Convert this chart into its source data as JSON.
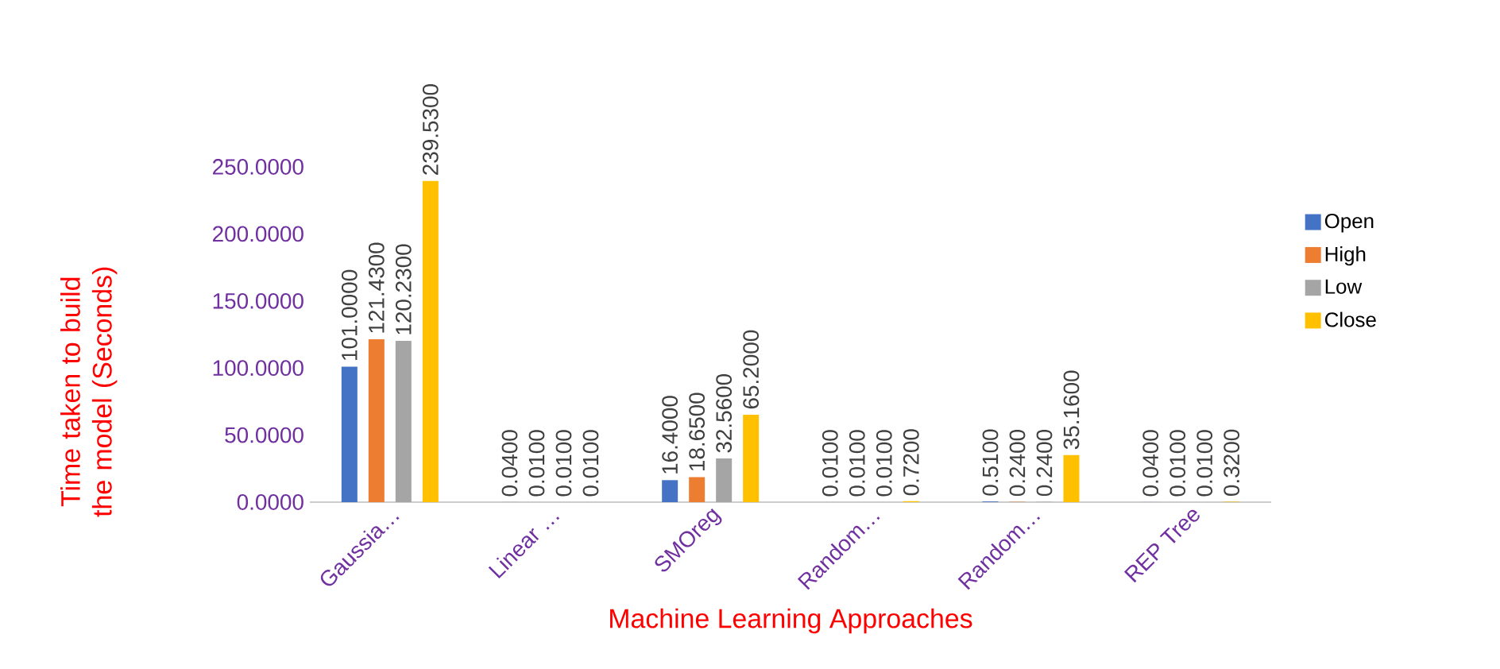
{
  "chart_data": {
    "type": "bar",
    "xlabel": "Machine Learning Approaches",
    "ylabel": "Time taken to build the model (Seconds)",
    "categories": [
      "Gaussia…",
      "Linear …",
      "SMOreg",
      "Random…",
      "Random…",
      "REP Tree"
    ],
    "series": [
      {
        "name": "Open",
        "color": "#4472c4",
        "values": [
          101.0,
          0.04,
          16.4,
          0.01,
          0.51,
          0.04
        ],
        "value_labels": [
          "101.0000",
          "0.0400",
          "16.4000",
          "0.0100",
          "0.5100",
          "0.0400"
        ]
      },
      {
        "name": "High",
        "color": "#ed7d31",
        "values": [
          121.43,
          0.01,
          18.65,
          0.01,
          0.24,
          0.01
        ],
        "value_labels": [
          "121.4300",
          "0.0100",
          "18.6500",
          "0.0100",
          "0.2400",
          "0.0100"
        ]
      },
      {
        "name": "Low",
        "color": "#a5a5a5",
        "values": [
          120.23,
          0.01,
          32.56,
          0.01,
          0.24,
          0.01
        ],
        "value_labels": [
          "120.2300",
          "0.0100",
          "32.5600",
          "0.0100",
          "0.2400",
          "0.0100"
        ]
      },
      {
        "name": "Close",
        "color": "#ffc000",
        "values": [
          239.53,
          0.01,
          65.2,
          0.72,
          35.16,
          0.32
        ],
        "value_labels": [
          "239.5300",
          "0.0100",
          "65.2000",
          "0.7200",
          "35.1600",
          "0.3200"
        ]
      }
    ],
    "ylim": [
      0,
      250
    ],
    "yticks": [
      {
        "value": 0,
        "label": "0.0000"
      },
      {
        "value": 50,
        "label": "50.0000"
      },
      {
        "value": 100,
        "label": "100.0000"
      },
      {
        "value": 150,
        "label": "150.0000"
      },
      {
        "value": 200,
        "label": "200.0000"
      },
      {
        "value": 250,
        "label": "250.0000"
      }
    ],
    "grid": false,
    "legend": "right"
  }
}
